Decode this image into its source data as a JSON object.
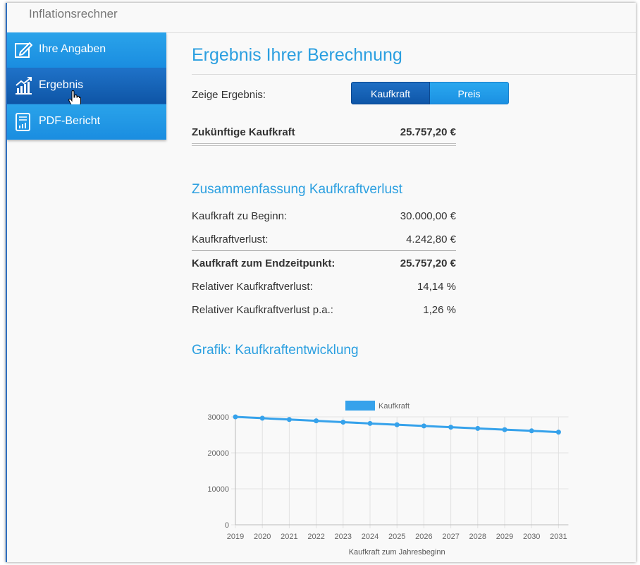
{
  "app": {
    "title": "Inflationsrechner"
  },
  "sidebar": {
    "items": [
      {
        "label": "Ihre Angaben",
        "icon": "edit-icon"
      },
      {
        "label": "Ergebnis",
        "icon": "chart-growth-icon"
      },
      {
        "label": "PDF-Bericht",
        "icon": "report-document-icon"
      }
    ],
    "active_index": 1
  },
  "main": {
    "page_title": "Ergebnis Ihrer Berechnung",
    "show_label": "Zeige Ergebnis:",
    "toggle": {
      "option1": "Kaufkraft",
      "option2": "Preis",
      "selected": "Kaufkraft"
    },
    "future": {
      "label": "Zukünftige Kaufkraft",
      "value": "25.757,20 €"
    },
    "summary": {
      "title": "Zusammenfassung Kaufkraftverlust",
      "rows": [
        {
          "label": "Kaufkraft zu Beginn:",
          "value": "30.000,00 €"
        },
        {
          "label": "Kaufkraftverlust:",
          "value": "4.242,80 €"
        },
        {
          "label": "Kaufkraft zum Endzeitpunkt:",
          "value": "25.757,20 €"
        },
        {
          "label": "Relativer Kaufkraftverlust:",
          "value": "14,14 %"
        },
        {
          "label": "Relativer Kaufkraftverlust p.a.:",
          "value": "1,26 %"
        }
      ]
    },
    "chart_section_title": "Grafik: Kaufkraftentwicklung"
  },
  "colors": {
    "accent": "#2b9fe0",
    "nav_active": "#0e55a6",
    "line": "#36a2eb"
  },
  "chart_data": {
    "type": "line",
    "categories": [
      "2019",
      "2020",
      "2021",
      "2022",
      "2023",
      "2024",
      "2025",
      "2026",
      "2027",
      "2028",
      "2029",
      "2030",
      "2031"
    ],
    "series": [
      {
        "name": "Kaufkraft",
        "values": [
          30000,
          29630,
          29260,
          28890,
          28530,
          28170,
          27820,
          27470,
          27130,
          26790,
          26450,
          26120,
          25757
        ]
      }
    ],
    "xlabel": "Kaufkraft zum Jahresbeginn",
    "ylabel": "",
    "ylim": [
      0,
      30000
    ],
    "yticks": [
      "30000",
      "20000",
      "10000",
      "0"
    ],
    "grid": true,
    "legend": "top"
  }
}
